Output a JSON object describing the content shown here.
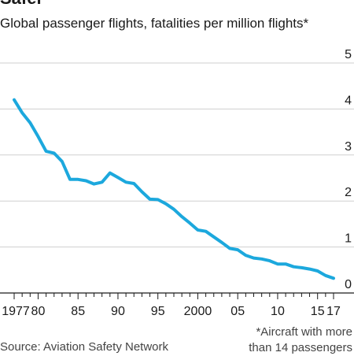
{
  "chart_data": {
    "type": "line",
    "title": "Safer",
    "subtitle": "Global passenger flights, fatalities per million flights*",
    "x": [
      1977,
      1978,
      1979,
      1980,
      1981,
      1982,
      1983,
      1984,
      1985,
      1986,
      1987,
      1988,
      1989,
      1990,
      1991,
      1992,
      1993,
      1994,
      1995,
      1996,
      1997,
      1998,
      1999,
      2000,
      2001,
      2002,
      2003,
      2004,
      2005,
      2006,
      2007,
      2008,
      2009,
      2010,
      2011,
      2012,
      2013,
      2014,
      2015,
      2016,
      2017
    ],
    "series": [
      {
        "values": [
          4.2,
          3.92,
          3.7,
          3.4,
          3.08,
          3.04,
          2.86,
          2.47,
          2.47,
          2.44,
          2.37,
          2.41,
          2.61,
          2.51,
          2.41,
          2.38,
          2.2,
          2.04,
          2.03,
          1.94,
          1.82,
          1.66,
          1.52,
          1.37,
          1.34,
          1.22,
          1.1,
          0.97,
          0.94,
          0.82,
          0.76,
          0.74,
          0.7,
          0.63,
          0.63,
          0.57,
          0.55,
          0.52,
          0.48,
          0.38,
          0.32
        ],
        "color": "#1ca8dd"
      }
    ],
    "ylim": [
      0,
      5
    ],
    "xlim": [
      1977,
      2017
    ],
    "ytick_labels": [
      "0",
      "1",
      "2",
      "3",
      "4",
      "5"
    ],
    "xtick_labels": [
      "1977",
      "80",
      "85",
      "90",
      "95",
      "2000",
      "05",
      "10",
      "15",
      "17"
    ],
    "grid": true,
    "footnote": [
      "*Aircraft with more",
      "than 14 passengers"
    ],
    "source": "Source: Aviation Safety Network"
  }
}
